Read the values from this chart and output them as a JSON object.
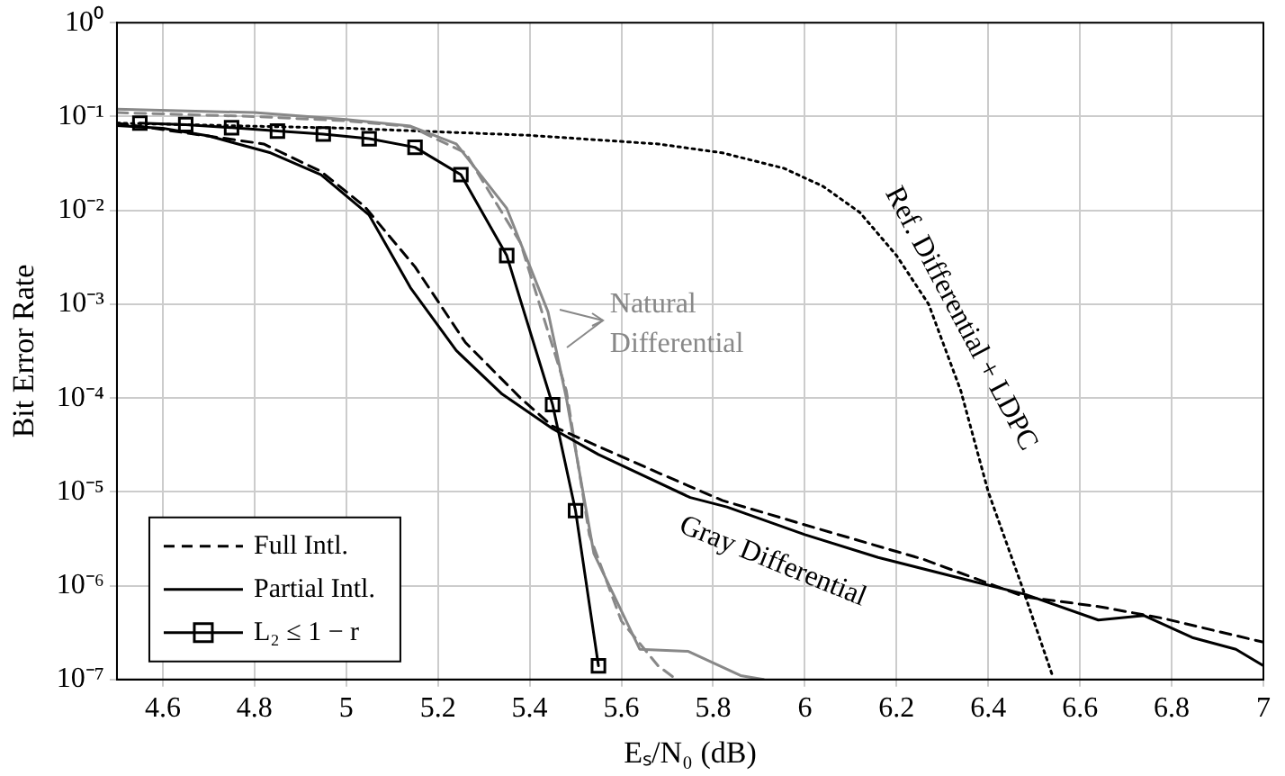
{
  "chart_data": {
    "type": "line",
    "xlabel": "Eₛ/N₀ (dB)",
    "ylabel": "Bit Error Rate",
    "xlim": [
      4.5,
      7
    ],
    "xticks": [
      4.6,
      4.8,
      5,
      5.2,
      5.4,
      5.6,
      5.8,
      6,
      6.2,
      6.4,
      6.6,
      6.8,
      7
    ],
    "ylim": [
      1e-07,
      1
    ],
    "yticks": [
      {
        "value": 1e-07,
        "label": "10⁻⁷"
      },
      {
        "value": 1e-06,
        "label": "10⁻⁶"
      },
      {
        "value": 1e-05,
        "label": "10⁻⁵"
      },
      {
        "value": 0.0001,
        "label": "10⁻⁴"
      },
      {
        "value": 0.001,
        "label": "10⁻³"
      },
      {
        "value": 0.01,
        "label": "10⁻²"
      },
      {
        "value": 0.1,
        "label": "10⁻¹"
      },
      {
        "value": 1,
        "label": "10⁰"
      }
    ],
    "log": "y",
    "grid": true,
    "legend": "bottom left",
    "series": [
      {
        "name": "Full Intl.",
        "color": "#000000",
        "line_style": "dashed",
        "x": [
          4.5,
          4.74,
          4.82,
          4.945,
          5.04,
          5.15,
          5.26,
          5.38,
          5.45,
          5.59,
          5.68,
          5.82,
          6.025,
          6.26,
          6.48,
          6.64,
          6.78,
          7
        ],
        "values": [
          0.085,
          0.058,
          0.051,
          0.026,
          0.011,
          0.0025,
          0.00039,
          0.0001,
          5e-05,
          2.5e-05,
          1.6e-05,
          8.1e-06,
          4.1e-06,
          1.9e-06,
          7.6e-07,
          6e-07,
          4.5e-07,
          2.5e-07
        ]
      },
      {
        "name": "Partial Intl.",
        "color": "#000000",
        "line_style": "solid",
        "x": [
          4.5,
          4.6,
          4.7,
          4.835,
          4.945,
          5.05,
          5.14,
          5.24,
          5.34,
          5.45,
          5.55,
          5.75,
          5.83,
          6,
          6.16,
          6.37,
          6.48,
          6.64,
          6.74,
          6.845,
          6.94,
          7
        ],
        "values": [
          0.08,
          0.075,
          0.062,
          0.041,
          0.024,
          0.0089,
          0.0015,
          0.00032,
          0.00011,
          4.7e-05,
          2.5e-05,
          8.7e-06,
          6.9e-06,
          3.5e-06,
          2e-06,
          1.1e-06,
          8.1e-07,
          4.3e-07,
          4.8e-07,
          2.8e-07,
          2.1e-07,
          1.4e-07
        ]
      },
      {
        "name": "L₂ ≤ 1 − r",
        "color": "#000000",
        "line_style": "solid",
        "marker": "square",
        "x": [
          4.55,
          4.65,
          4.75,
          4.85,
          4.95,
          5.05,
          5.15,
          5.25,
          5.35,
          5.45,
          5.5,
          5.55
        ],
        "values": [
          0.085,
          0.082,
          0.076,
          0.07,
          0.065,
          0.058,
          0.047,
          0.024,
          0.0033,
          8.5e-05,
          6.3e-06,
          1.4e-07
        ]
      },
      {
        "color": "#888888",
        "line_style": "solid",
        "x": [
          4.5,
          4.8,
          5,
          5.14,
          5.24,
          5.35,
          5.44,
          5.48,
          5.54,
          5.64,
          5.745,
          5.86,
          5.91
        ],
        "values": [
          0.12,
          0.11,
          0.093,
          0.079,
          0.051,
          0.0105,
          0.00083,
          0.0001,
          2.2e-06,
          2.1e-07,
          2e-07,
          1.1e-07,
          1e-07
        ]
      },
      {
        "color": "#888888",
        "line_style": "dashed",
        "x": [
          4.5,
          4.8,
          5,
          5.14,
          5.26,
          5.38,
          5.48,
          5.53,
          5.6,
          5.68,
          5.72
        ],
        "values": [
          0.11,
          0.1,
          0.09,
          0.078,
          0.041,
          0.0045,
          0.00012,
          3.5e-06,
          4.2e-07,
          1.4e-07,
          1e-07
        ]
      },
      {
        "color": "#000000",
        "line_style": "dotted",
        "x": [
          4.5,
          5,
          5.4,
          5.68,
          5.82,
          5.955,
          6.04,
          6.12,
          6.2,
          6.27,
          6.34,
          6.4,
          6.47,
          6.54
        ],
        "values": [
          0.085,
          0.075,
          0.063,
          0.051,
          0.041,
          0.028,
          0.018,
          0.0095,
          0.0033,
          0.001,
          0.00012,
          1e-05,
          1.1e-06,
          1.1e-07
        ]
      }
    ],
    "annotations": [
      "Natural Differential",
      "Gray Differential",
      "Ref. Differential + LDPC"
    ]
  }
}
